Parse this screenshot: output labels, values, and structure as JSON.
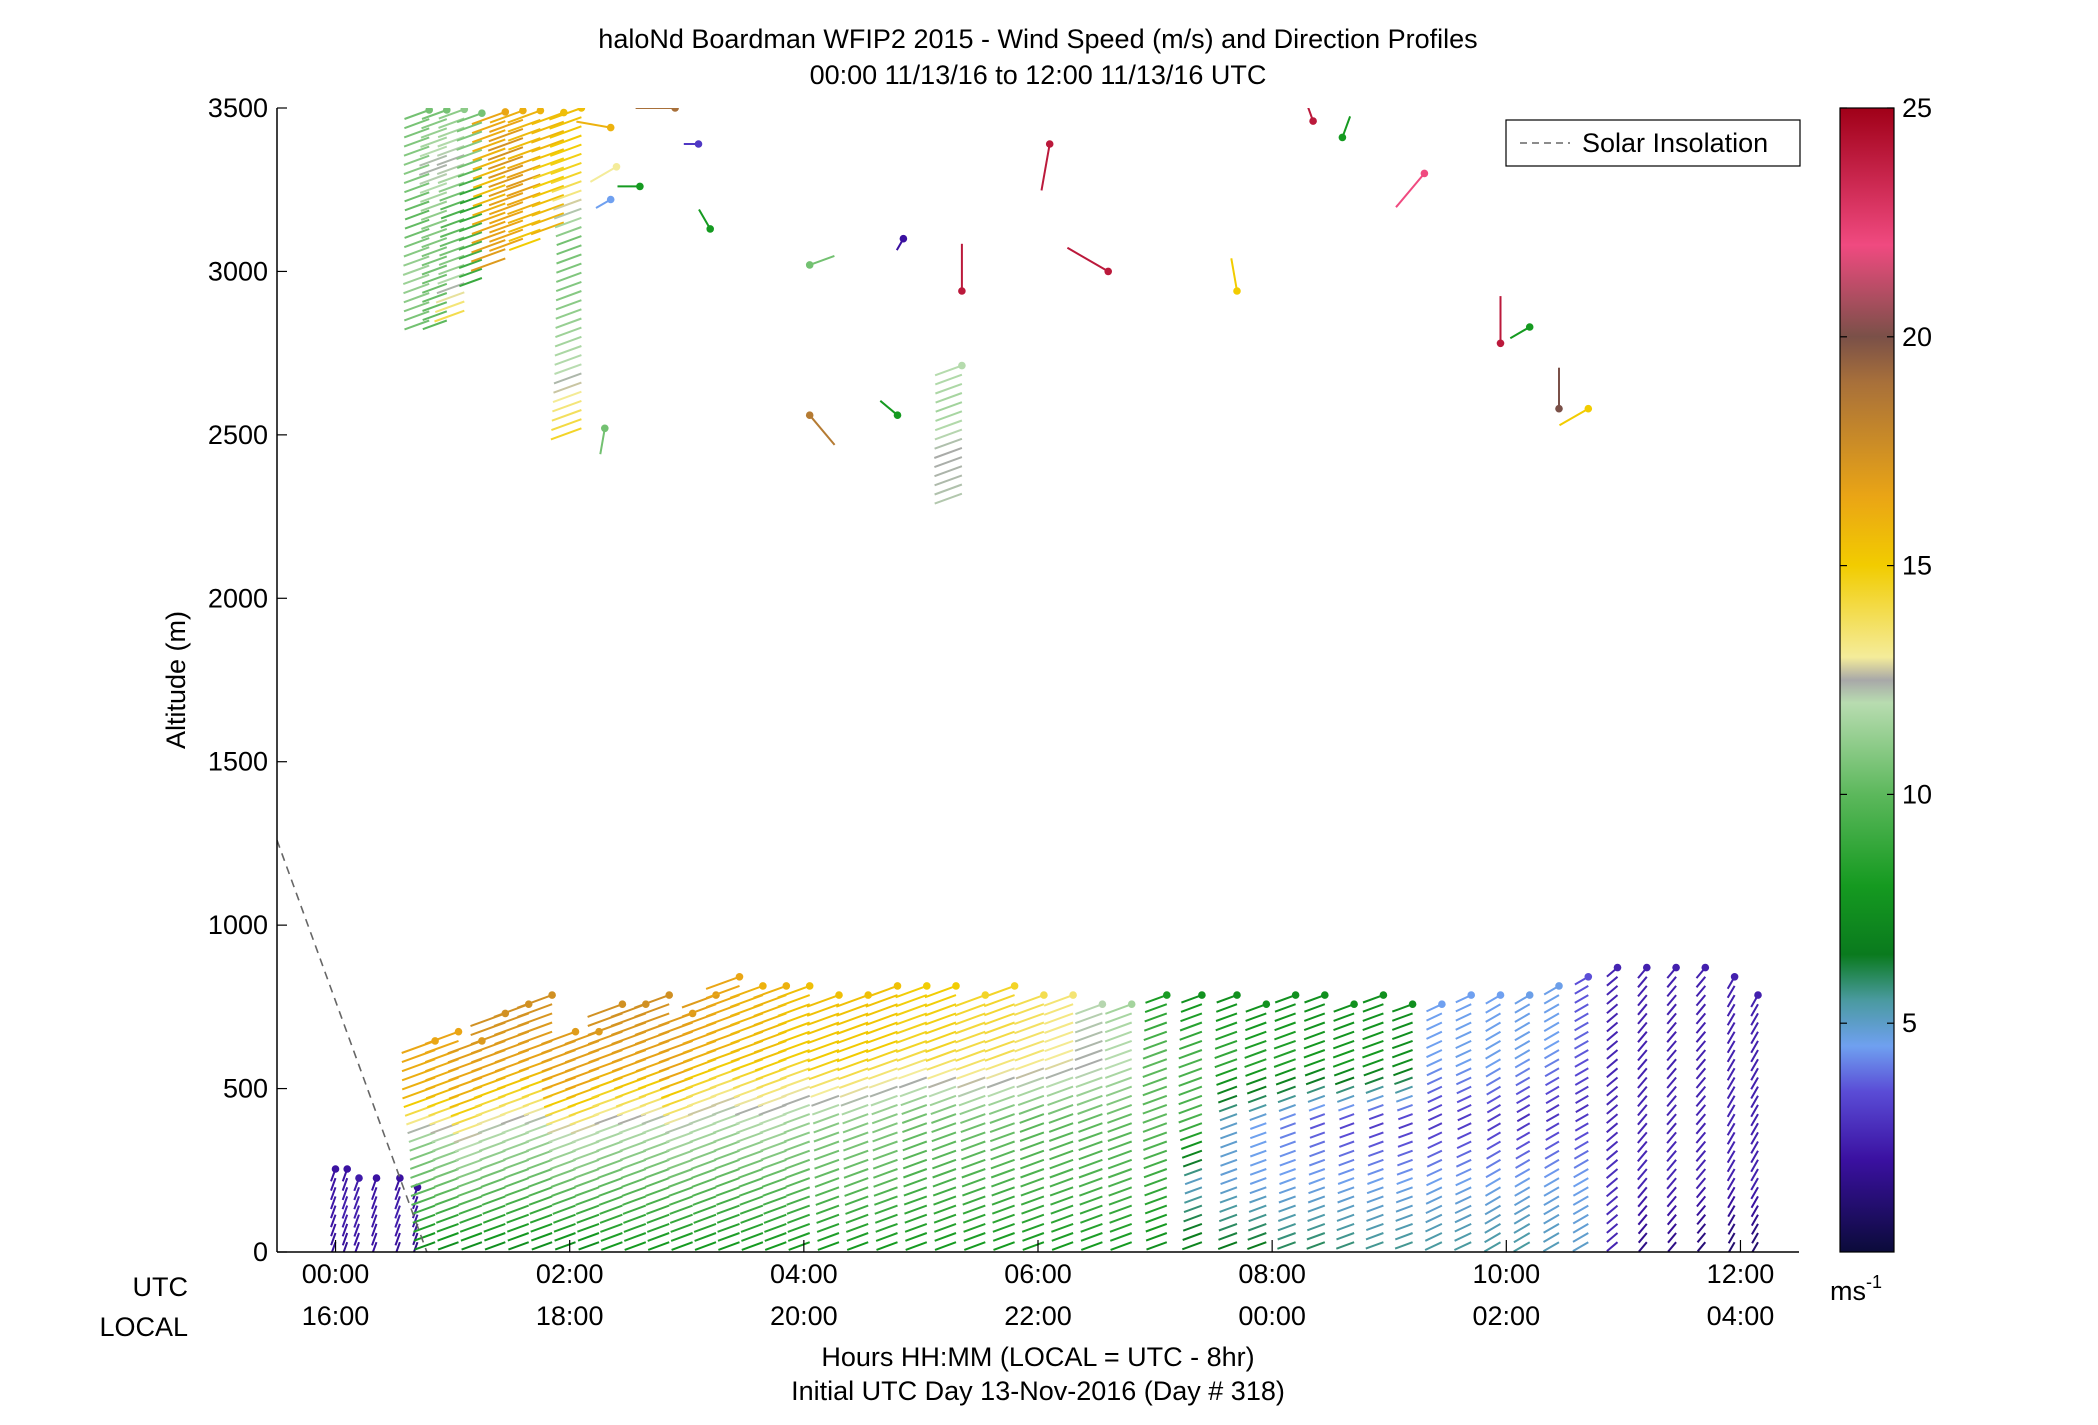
{
  "chart_data": {
    "type": "wind_barb_profile",
    "title": "haloNd Boardman WFIP2 2015 - Wind Speed (m/s) and Direction Profiles",
    "subtitle": "00:00 11/13/16 to 12:00 11/13/16  UTC",
    "xlabel": "Hours HH:MM  (LOCAL = UTC - 8hr)",
    "xlabel2": "Initial UTC Day 13-Nov-2016 (Day # 318)",
    "ylabel": "Altitude (m)",
    "row_label_utc": "UTC",
    "row_label_local": "LOCAL",
    "xlim_hours": [
      -0.5,
      12.5
    ],
    "ylim": [
      0,
      3500
    ],
    "yticks": [
      0,
      500,
      1000,
      1500,
      2000,
      2500,
      3000,
      3500
    ],
    "ytick_labels": [
      "0",
      "500",
      "1000",
      "1500",
      "2000",
      "2500",
      "3000",
      "3500"
    ],
    "xticks_hours": [
      0,
      2,
      4,
      6,
      8,
      10,
      12
    ],
    "xtick_labels_utc": [
      "00:00",
      "02:00",
      "04:00",
      "06:00",
      "08:00",
      "10:00",
      "12:00"
    ],
    "xtick_labels_local": [
      "16:00",
      "18:00",
      "20:00",
      "22:00",
      "00:00",
      "02:00",
      "04:00"
    ],
    "colorbar": {
      "range": [
        0,
        25
      ],
      "ticks": [
        5,
        10,
        15,
        20,
        25
      ],
      "tick_labels": [
        "5",
        "10",
        "15",
        "20",
        "25"
      ],
      "unit_base": "ms",
      "unit_exp": "-1",
      "stops": [
        {
          "v": 0,
          "c": "#0b0b3a"
        },
        {
          "v": 2,
          "c": "#3a10a0"
        },
        {
          "v": 3.5,
          "c": "#5a4cd6"
        },
        {
          "v": 4.5,
          "c": "#6fa0f0"
        },
        {
          "v": 5.5,
          "c": "#4a9aa0"
        },
        {
          "v": 6.5,
          "c": "#0a7a1e"
        },
        {
          "v": 8,
          "c": "#159a20"
        },
        {
          "v": 10,
          "c": "#5cb85c"
        },
        {
          "v": 12,
          "c": "#b8dcb0"
        },
        {
          "v": 12.5,
          "c": "#a8a8a8"
        },
        {
          "v": 13,
          "c": "#f4ec9a"
        },
        {
          "v": 15,
          "c": "#f2cc00"
        },
        {
          "v": 16.5,
          "c": "#eaa515"
        },
        {
          "v": 19,
          "c": "#a8703a"
        },
        {
          "v": 20,
          "c": "#7a5048"
        },
        {
          "v": 22,
          "c": "#f04a80"
        },
        {
          "v": 25,
          "c": "#a00018"
        }
      ]
    },
    "legend": {
      "label": "Solar Insolation",
      "style": "dashed",
      "color": "#666666",
      "placement": "top-right"
    },
    "solar_insolation": {
      "x_hours": [
        -0.5,
        0.78
      ],
      "y": [
        1260,
        0
      ]
    },
    "profiles": [
      {
        "t": 0.0,
        "top": 280,
        "ws": [
          1.8,
          2.2,
          2.0
        ],
        "wd": 200
      },
      {
        "t": 0.1,
        "top": 260,
        "ws": [
          1.8,
          2.4,
          2.0
        ],
        "wd": 200
      },
      {
        "t": 0.2,
        "top": 250,
        "ws": [
          2.0,
          2.4,
          2.2
        ],
        "wd": 200
      },
      {
        "t": 0.35,
        "top": 250,
        "ws": [
          2.0,
          2.2,
          2.0
        ],
        "wd": 200
      },
      {
        "t": 0.55,
        "top": 230,
        "ws": [
          1.8,
          2.4,
          2.0
        ],
        "wd": 200
      },
      {
        "t": 0.7,
        "top": 220,
        "ws": [
          1.5,
          2.2,
          1.8
        ],
        "wd": 200
      },
      {
        "t": 0.85,
        "top": 670,
        "ws": [
          7.5,
          10,
          11,
          16,
          16.5
        ],
        "wd": 250
      },
      {
        "t": 1.05,
        "top": 680,
        "ws": [
          7.5,
          10,
          11.5,
          16,
          16.5
        ],
        "wd": 250
      },
      {
        "t": 1.25,
        "top": 650,
        "ws": [
          7.5,
          10,
          12,
          16,
          17
        ],
        "wd": 250
      },
      {
        "t": 1.45,
        "top": 740,
        "ws": [
          7.5,
          10,
          12,
          16.5,
          17.5
        ],
        "wd": 250
      },
      {
        "t": 1.65,
        "top": 770,
        "ws": [
          7.5,
          10,
          12,
          16.5,
          17.5
        ],
        "wd": 250
      },
      {
        "t": 1.85,
        "top": 790,
        "ws": [
          7.5,
          10,
          12,
          16.5,
          17.5
        ],
        "wd": 250
      },
      {
        "t": 2.05,
        "top": 700,
        "ws": [
          7.5,
          10,
          12,
          16.5,
          17
        ],
        "wd": 250
      },
      {
        "t": 2.25,
        "top": 700,
        "ws": [
          7.5,
          10,
          12,
          16.5,
          17
        ],
        "wd": 250
      },
      {
        "t": 2.45,
        "top": 770,
        "ws": [
          8,
          10,
          12,
          16.5,
          17.5
        ],
        "wd": 250
      },
      {
        "t": 2.65,
        "top": 770,
        "ws": [
          8,
          10,
          12,
          16.5,
          17.5
        ],
        "wd": 250
      },
      {
        "t": 2.85,
        "top": 790,
        "ws": [
          8,
          10,
          12,
          16.5,
          17.5
        ],
        "wd": 250
      },
      {
        "t": 3.05,
        "top": 740,
        "ws": [
          8,
          10,
          12,
          16.5,
          17
        ],
        "wd": 250
      },
      {
        "t": 3.25,
        "top": 800,
        "ws": [
          8,
          10,
          12,
          16,
          17
        ],
        "wd": 250
      },
      {
        "t": 3.45,
        "top": 850,
        "ws": [
          8,
          10,
          12,
          16,
          16.5
        ],
        "wd": 250
      },
      {
        "t": 3.65,
        "top": 820,
        "ws": [
          8,
          10,
          12,
          15.5,
          16
        ],
        "wd": 250
      },
      {
        "t": 3.85,
        "top": 820,
        "ws": [
          8,
          10,
          12,
          15.5,
          16
        ],
        "wd": 250
      },
      {
        "t": 4.05,
        "top": 820,
        "ws": [
          8,
          10,
          11.5,
          15,
          15.5
        ],
        "wd": 250
      },
      {
        "t": 4.3,
        "top": 790,
        "ws": [
          8,
          10,
          11,
          15,
          15.5
        ],
        "wd": 250
      },
      {
        "t": 4.55,
        "top": 800,
        "ws": [
          8,
          10,
          11,
          15,
          15.5
        ],
        "wd": 250
      },
      {
        "t": 4.8,
        "top": 840,
        "ws": [
          8,
          10,
          11,
          15,
          15.5
        ],
        "wd": 250
      },
      {
        "t": 5.05,
        "top": 840,
        "ws": [
          8,
          9.5,
          10.5,
          14.5,
          15
        ],
        "wd": 250
      },
      {
        "t": 5.3,
        "top": 830,
        "ws": [
          8,
          9.5,
          10.5,
          14.5,
          15
        ],
        "wd": 250
      },
      {
        "t": 5.55,
        "top": 800,
        "ws": [
          8,
          9.5,
          10.5,
          14,
          14.5
        ],
        "wd": 250
      },
      {
        "t": 5.8,
        "top": 820,
        "ws": [
          8,
          9.5,
          10.5,
          14,
          14.5
        ],
        "wd": 250
      },
      {
        "t": 6.05,
        "top": 800,
        "ws": [
          8,
          9.5,
          10,
          13.5,
          14
        ],
        "wd": 250
      },
      {
        "t": 6.3,
        "top": 790,
        "ws": [
          8,
          9.5,
          10,
          13,
          13.5
        ],
        "wd": 250
      },
      {
        "t": 6.55,
        "top": 780,
        "ws": [
          8,
          9.5,
          10,
          12.5,
          12
        ],
        "wd": 250
      },
      {
        "t": 6.8,
        "top": 780,
        "ws": [
          8,
          9.5,
          10,
          12,
          11.5
        ],
        "wd": 250
      },
      {
        "t": 7.1,
        "top": 800,
        "ws": [
          7.5,
          9,
          10,
          10,
          8
        ],
        "wd": 250
      },
      {
        "t": 7.4,
        "top": 800,
        "ws": [
          7,
          5,
          9.5,
          9.5,
          7.5
        ],
        "wd": 250
      },
      {
        "t": 7.7,
        "top": 790,
        "ws": [
          6.5,
          4.8,
          5,
          9,
          7.5
        ],
        "wd": 250
      },
      {
        "t": 7.95,
        "top": 780,
        "ws": [
          6.5,
          4.6,
          4.5,
          8.5,
          7.5
        ],
        "wd": 250
      },
      {
        "t": 8.2,
        "top": 790,
        "ws": [
          6,
          4.6,
          4,
          8.5,
          7.5
        ],
        "wd": 250
      },
      {
        "t": 8.45,
        "top": 790,
        "ws": [
          6,
          4.6,
          3.5,
          8,
          7.5
        ],
        "wd": 250
      },
      {
        "t": 8.7,
        "top": 780,
        "ws": [
          5.8,
          4.6,
          3.2,
          8,
          7.5
        ],
        "wd": 250
      },
      {
        "t": 8.95,
        "top": 790,
        "ws": [
          5.6,
          4.6,
          3.0,
          8,
          7.5
        ],
        "wd": 250
      },
      {
        "t": 9.2,
        "top": 780,
        "ws": [
          5.6,
          4.6,
          3.0,
          7.5,
          7.5
        ],
        "wd": 250
      },
      {
        "t": 9.45,
        "top": 780,
        "ws": [
          5.5,
          4.6,
          3.0,
          4.5,
          4.5
        ],
        "wd": 245
      },
      {
        "t": 9.7,
        "top": 790,
        "ws": [
          5.5,
          4.6,
          3.0,
          4.6,
          4.5
        ],
        "wd": 245
      },
      {
        "t": 9.95,
        "top": 790,
        "ws": [
          5.5,
          4.6,
          3.0,
          4.6,
          4.5
        ],
        "wd": 240
      },
      {
        "t": 10.2,
        "top": 810,
        "ws": [
          5.5,
          4.6,
          2.8,
          4.6,
          4.6
        ],
        "wd": 240
      },
      {
        "t": 10.45,
        "top": 840,
        "ws": [
          5.2,
          4.6,
          2.8,
          4.5,
          4.6
        ],
        "wd": 240
      },
      {
        "t": 10.7,
        "top": 860,
        "ws": [
          5.0,
          4.5,
          2.8,
          3.8,
          3.5
        ],
        "wd": 240
      },
      {
        "t": 10.95,
        "top": 890,
        "ws": [
          2.5,
          2.8,
          2.6,
          2.5,
          2.5
        ],
        "wd": 230
      },
      {
        "t": 11.2,
        "top": 880,
        "ws": [
          1.5,
          2.6,
          2.5,
          2.4,
          2.4
        ],
        "wd": 220
      },
      {
        "t": 11.45,
        "top": 890,
        "ws": [
          1.5,
          2.6,
          2.5,
          2.4,
          2.4
        ],
        "wd": 220
      },
      {
        "t": 11.7,
        "top": 880,
        "ws": [
          1.2,
          2.5,
          2.5,
          2.4,
          2.4
        ],
        "wd": 220
      },
      {
        "t": 11.95,
        "top": 860,
        "ws": [
          1.0,
          2.4,
          2.5,
          2.4,
          2.4
        ],
        "wd": 210
      },
      {
        "t": 12.15,
        "top": 800,
        "ws": [
          1.0,
          2.4,
          2.4,
          2.4,
          2.4
        ],
        "wd": 210
      },
      {
        "t": 0.8,
        "base": 2850,
        "top": 3500,
        "ws": [
          10.5,
          11.5,
          10,
          11,
          10.5
        ],
        "wd": 250
      },
      {
        "t": 0.95,
        "base": 2850,
        "top": 3500,
        "ws": [
          10,
          10.5,
          11,
          12.5,
          10.5
        ],
        "wd": 250
      },
      {
        "t": 1.1,
        "base": 2880,
        "top": 3500,
        "ws": [
          14,
          11,
          9.5,
          12.5,
          11
        ],
        "wd": 250
      },
      {
        "t": 1.25,
        "base": 2980,
        "top": 3500,
        "ws": [
          9,
          9.5,
          8.5,
          11,
          10.5
        ],
        "wd": 250
      },
      {
        "t": 1.45,
        "base": 3040,
        "top": 3500,
        "ws": [
          17,
          16.5,
          15.5,
          16,
          16.5
        ],
        "wd": 250
      },
      {
        "t": 1.6,
        "base": 3100,
        "top": 3500,
        "ws": [
          16.5,
          16.5,
          17,
          17.5,
          16
        ],
        "wd": 250
      },
      {
        "t": 1.75,
        "base": 3100,
        "top": 3500,
        "ws": [
          15,
          16,
          17,
          15.5,
          16
        ],
        "wd": 250
      },
      {
        "t": 1.95,
        "base": 3150,
        "top": 3500,
        "ws": [
          16,
          15.5,
          14.5,
          16,
          15.5
        ],
        "wd": 250
      },
      {
        "t": 2.1,
        "base": 2520,
        "top": 3500,
        "ws": [
          14.5,
          12,
          11,
          10.5,
          14.5,
          15.5
        ],
        "wd": 250
      },
      {
        "t": 5.35,
        "base": 2320,
        "top": 2730,
        "ws": [
          12.2,
          12.5,
          11.5,
          12
        ],
        "wd": 250
      }
    ],
    "isolated_barbs": [
      {
        "t": 2.3,
        "z": 2520,
        "ws": 10.5,
        "wd": 190
      },
      {
        "t": 2.35,
        "z": 3440,
        "ws": 16,
        "wd": 280
      },
      {
        "t": 2.4,
        "z": 3320,
        "ws": 13,
        "wd": 240
      },
      {
        "t": 2.35,
        "z": 3220,
        "ws": 4.5,
        "wd": 240
      },
      {
        "t": 2.6,
        "z": 3260,
        "ws": 8,
        "wd": 270
      },
      {
        "t": 2.9,
        "z": 3500,
        "ws": 19,
        "wd": 270
      },
      {
        "t": 3.1,
        "z": 3390,
        "ws": 3,
        "wd": 270
      },
      {
        "t": 3.2,
        "z": 3130,
        "ws": 8,
        "wd": 330
      },
      {
        "t": 4.05,
        "z": 3020,
        "ws": 10.5,
        "wd": 70
      },
      {
        "t": 4.05,
        "z": 2560,
        "ws": 18.5,
        "wd": 140
      },
      {
        "t": 4.8,
        "z": 2560,
        "ws": 8,
        "wd": 310
      },
      {
        "t": 4.85,
        "z": 3100,
        "ws": 2,
        "wd": 210
      },
      {
        "t": 5.35,
        "z": 2940,
        "ws": 24,
        "wd": 360
      },
      {
        "t": 6.1,
        "z": 3390,
        "ws": 24,
        "wd": 190
      },
      {
        "t": 6.6,
        "z": 3000,
        "ws": 24,
        "wd": 300
      },
      {
        "t": 7.7,
        "z": 2940,
        "ws": 15,
        "wd": 350
      },
      {
        "t": 8.35,
        "z": 3460,
        "ws": 24,
        "wd": 340
      },
      {
        "t": 8.6,
        "z": 3410,
        "ws": 8,
        "wd": 20
      },
      {
        "t": 9.3,
        "z": 3300,
        "ws": 22,
        "wd": 220
      },
      {
        "t": 9.95,
        "z": 2780,
        "ws": 24,
        "wd": 360
      },
      {
        "t": 10.2,
        "z": 2830,
        "ws": 8,
        "wd": 240
      },
      {
        "t": 10.45,
        "z": 2580,
        "ws": 20,
        "wd": 360
      },
      {
        "t": 10.7,
        "z": 2580,
        "ws": 15,
        "wd": 240
      },
      {
        "t": 11.5,
        "z": 3520,
        "ws": 24,
        "wd": 0
      }
    ]
  }
}
